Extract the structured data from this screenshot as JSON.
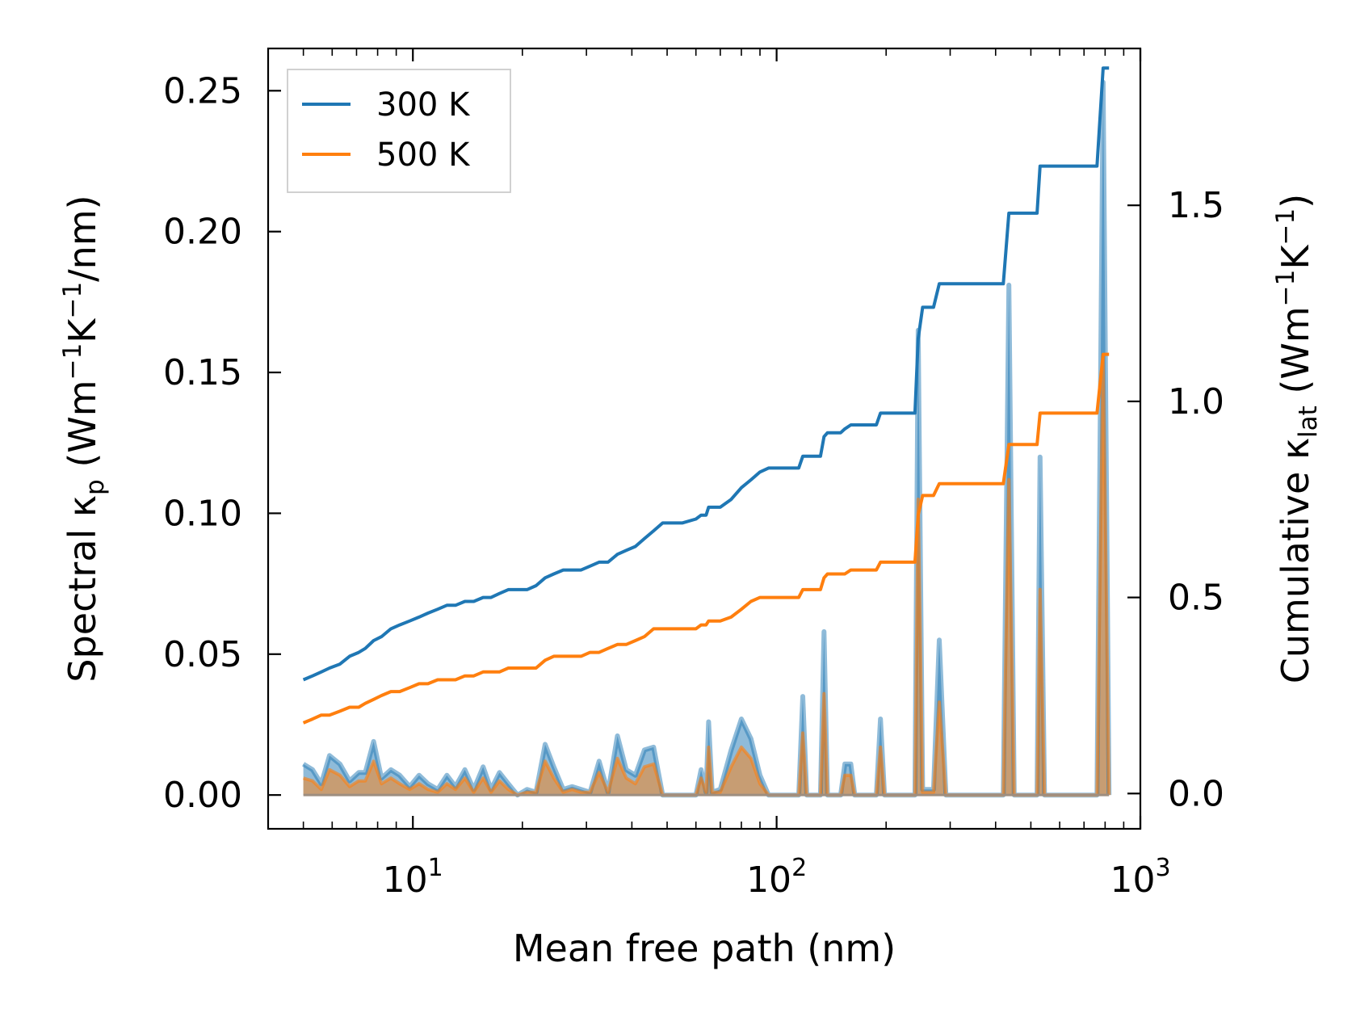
{
  "chart_data": {
    "type": "line",
    "title": "",
    "xlabel": "Mean free path (nm)",
    "ylabel": {
      "main": "Spectral κ",
      "sub": "p",
      "units_pre": " (Wm",
      "sup1": "−1",
      "units_mid": "K",
      "sup2": "−1",
      "units_post": "/nm)"
    },
    "ylabel_right": {
      "main": "Cumulative κ",
      "sub": "lat",
      "units_pre": " (Wm",
      "sup1": "−1",
      "units_mid": "K",
      "sup2": "−1",
      "units_post": ")"
    },
    "xscale": "log",
    "xlim": [
      4,
      1000
    ],
    "ylim": [
      -0.012,
      0.265
    ],
    "ylim_right": [
      -0.09,
      1.9
    ],
    "x_ticks": [
      {
        "base": "10",
        "exp": "1",
        "value": 10
      },
      {
        "base": "10",
        "exp": "2",
        "value": 100
      },
      {
        "base": "10",
        "exp": "3",
        "value": 1000
      }
    ],
    "y_ticks": [
      "0.00",
      "0.05",
      "0.10",
      "0.15",
      "0.20",
      "0.25"
    ],
    "y_ticks_right": [
      "0.0",
      "0.5",
      "1.0",
      "1.5"
    ],
    "legend": {
      "position": "top-left",
      "entries": [
        "300 K",
        "500 K"
      ]
    },
    "colors": {
      "s300": "#1f77b4",
      "s500": "#ff7f0e",
      "fill300": "#1f77b4",
      "fill500": "#ff7f0e"
    },
    "spectral": {
      "300 K": [
        [
          5,
          0.011
        ],
        [
          5.3,
          0.009
        ],
        [
          5.6,
          0.004
        ],
        [
          5.9,
          0.014
        ],
        [
          6.3,
          0.011
        ],
        [
          6.7,
          0.005
        ],
        [
          7.1,
          0.008
        ],
        [
          7.4,
          0.008
        ],
        [
          7.8,
          0.019
        ],
        [
          8.2,
          0.006
        ],
        [
          8.7,
          0.009
        ],
        [
          9.2,
          0.007
        ],
        [
          9.8,
          0.003
        ],
        [
          10.4,
          0.007
        ],
        [
          11,
          0.004
        ],
        [
          11.7,
          0.002
        ],
        [
          12.4,
          0.007
        ],
        [
          13.1,
          0.003
        ],
        [
          13.9,
          0.009
        ],
        [
          14.7,
          0.002
        ],
        [
          15.6,
          0.01
        ],
        [
          16.4,
          0.002
        ],
        [
          17.3,
          0.008
        ],
        [
          18.3,
          0.004
        ],
        [
          19.4,
          0.0
        ],
        [
          20.6,
          0.002
        ],
        [
          21.8,
          0.001
        ],
        [
          23.1,
          0.018
        ],
        [
          24.4,
          0.01
        ],
        [
          25.9,
          0.002
        ],
        [
          27.4,
          0.003
        ],
        [
          29,
          0.002
        ],
        [
          30.7,
          0.001
        ],
        [
          32.5,
          0.012
        ],
        [
          34.4,
          0.001
        ],
        [
          36.5,
          0.021
        ],
        [
          38.6,
          0.009
        ],
        [
          40.9,
          0.007
        ],
        [
          43.3,
          0.016
        ],
        [
          45.9,
          0.017
        ],
        [
          48.6,
          0.0
        ],
        [
          55,
          0.0
        ],
        [
          60,
          0.0
        ],
        [
          62,
          0.009
        ],
        [
          64,
          0.001
        ],
        [
          65,
          0.026
        ],
        [
          66.5,
          0.001
        ],
        [
          70,
          0.002
        ],
        [
          75,
          0.016
        ],
        [
          80,
          0.027
        ],
        [
          85,
          0.02
        ],
        [
          90,
          0.007
        ],
        [
          95,
          0.0
        ],
        [
          115,
          0.0
        ],
        [
          118,
          0.035
        ],
        [
          121,
          0.0
        ],
        [
          132,
          0.0
        ],
        [
          135,
          0.058
        ],
        [
          138,
          0.0
        ],
        [
          150,
          0.0
        ],
        [
          154,
          0.011
        ],
        [
          160,
          0.011
        ],
        [
          164,
          0.0
        ],
        [
          188,
          0.0
        ],
        [
          193,
          0.027
        ],
        [
          198,
          0.0
        ],
        [
          240,
          0.0
        ],
        [
          245,
          0.165
        ],
        [
          252,
          0.002
        ],
        [
          270,
          0.002
        ],
        [
          280,
          0.055
        ],
        [
          292,
          0.0
        ],
        [
          420,
          0.0
        ],
        [
          435,
          0.181
        ],
        [
          450,
          0.0
        ],
        [
          520,
          0.0
        ],
        [
          530,
          0.12
        ],
        [
          545,
          0.0
        ],
        [
          760,
          0.0
        ],
        [
          790,
          0.253
        ],
        [
          820,
          0.0
        ]
      ],
      "500 K": [
        [
          5,
          0.006
        ],
        [
          5.3,
          0.005
        ],
        [
          5.6,
          0.002
        ],
        [
          5.9,
          0.009
        ],
        [
          6.3,
          0.007
        ],
        [
          6.7,
          0.003
        ],
        [
          7.1,
          0.005
        ],
        [
          7.4,
          0.005
        ],
        [
          7.8,
          0.012
        ],
        [
          8.2,
          0.004
        ],
        [
          8.7,
          0.006
        ],
        [
          9.2,
          0.004
        ],
        [
          9.8,
          0.002
        ],
        [
          10.4,
          0.004
        ],
        [
          11,
          0.002
        ],
        [
          11.7,
          0.001
        ],
        [
          12.4,
          0.004
        ],
        [
          13.1,
          0.002
        ],
        [
          13.9,
          0.006
        ],
        [
          14.7,
          0.001
        ],
        [
          15.6,
          0.006
        ],
        [
          16.4,
          0.001
        ],
        [
          17.3,
          0.005
        ],
        [
          18.3,
          0.002
        ],
        [
          19.4,
          0.0
        ],
        [
          20.6,
          0.001
        ],
        [
          21.8,
          0.001
        ],
        [
          23.1,
          0.012
        ],
        [
          24.4,
          0.006
        ],
        [
          25.9,
          0.001
        ],
        [
          27.4,
          0.002
        ],
        [
          29,
          0.001
        ],
        [
          30.7,
          0.001
        ],
        [
          32.5,
          0.008
        ],
        [
          34.4,
          0.001
        ],
        [
          36.5,
          0.013
        ],
        [
          38.6,
          0.006
        ],
        [
          40.9,
          0.004
        ],
        [
          43.3,
          0.01
        ],
        [
          45.9,
          0.011
        ],
        [
          48.6,
          0.0
        ],
        [
          55,
          0.0
        ],
        [
          60,
          0.0
        ],
        [
          62,
          0.006
        ],
        [
          64,
          0.001
        ],
        [
          65,
          0.017
        ],
        [
          66.5,
          0.001
        ],
        [
          70,
          0.001
        ],
        [
          75,
          0.01
        ],
        [
          80,
          0.017
        ],
        [
          85,
          0.013
        ],
        [
          90,
          0.004
        ],
        [
          95,
          0.0
        ],
        [
          115,
          0.0
        ],
        [
          118,
          0.022
        ],
        [
          121,
          0.0
        ],
        [
          132,
          0.0
        ],
        [
          135,
          0.036
        ],
        [
          138,
          0.0
        ],
        [
          150,
          0.0
        ],
        [
          154,
          0.007
        ],
        [
          160,
          0.007
        ],
        [
          164,
          0.0
        ],
        [
          188,
          0.0
        ],
        [
          193,
          0.017
        ],
        [
          198,
          0.0
        ],
        [
          240,
          0.0
        ],
        [
          245,
          0.105
        ],
        [
          252,
          0.001
        ],
        [
          270,
          0.001
        ],
        [
          280,
          0.033
        ],
        [
          292,
          0.0
        ],
        [
          420,
          0.0
        ],
        [
          435,
          0.112
        ],
        [
          450,
          0.0
        ],
        [
          520,
          0.0
        ],
        [
          530,
          0.073
        ],
        [
          545,
          0.0
        ],
        [
          760,
          0.0
        ],
        [
          790,
          0.156
        ],
        [
          820,
          0.0
        ]
      ]
    },
    "cumulative": {
      "300 K": [
        [
          5,
          0.29
        ],
        [
          5.3,
          0.3
        ],
        [
          5.6,
          0.31
        ],
        [
          5.9,
          0.32
        ],
        [
          6.3,
          0.33
        ],
        [
          6.7,
          0.35
        ],
        [
          7.1,
          0.36
        ],
        [
          7.4,
          0.37
        ],
        [
          7.8,
          0.39
        ],
        [
          8.2,
          0.4
        ],
        [
          8.7,
          0.42
        ],
        [
          9.2,
          0.43
        ],
        [
          9.8,
          0.44
        ],
        [
          10.4,
          0.45
        ],
        [
          11,
          0.46
        ],
        [
          11.7,
          0.47
        ],
        [
          12.4,
          0.48
        ],
        [
          13.1,
          0.48
        ],
        [
          13.9,
          0.49
        ],
        [
          14.7,
          0.49
        ],
        [
          15.6,
          0.5
        ],
        [
          16.4,
          0.5
        ],
        [
          17.3,
          0.51
        ],
        [
          18.3,
          0.52
        ],
        [
          19.4,
          0.52
        ],
        [
          20.6,
          0.52
        ],
        [
          21.8,
          0.53
        ],
        [
          23.1,
          0.55
        ],
        [
          24.4,
          0.56
        ],
        [
          25.9,
          0.57
        ],
        [
          27.4,
          0.57
        ],
        [
          29,
          0.57
        ],
        [
          30.7,
          0.58
        ],
        [
          32.5,
          0.59
        ],
        [
          34.4,
          0.59
        ],
        [
          36.5,
          0.61
        ],
        [
          38.6,
          0.62
        ],
        [
          40.9,
          0.63
        ],
        [
          43.3,
          0.65
        ],
        [
          45.9,
          0.67
        ],
        [
          48.6,
          0.69
        ],
        [
          55,
          0.69
        ],
        [
          60,
          0.7
        ],
        [
          62,
          0.71
        ],
        [
          64,
          0.71
        ],
        [
          65,
          0.73
        ],
        [
          66.5,
          0.73
        ],
        [
          70,
          0.73
        ],
        [
          75,
          0.75
        ],
        [
          80,
          0.78
        ],
        [
          85,
          0.8
        ],
        [
          90,
          0.82
        ],
        [
          95,
          0.83
        ],
        [
          115,
          0.83
        ],
        [
          118,
          0.86
        ],
        [
          121,
          0.86
        ],
        [
          132,
          0.86
        ],
        [
          135,
          0.91
        ],
        [
          138,
          0.92
        ],
        [
          150,
          0.92
        ],
        [
          154,
          0.93
        ],
        [
          160,
          0.94
        ],
        [
          164,
          0.94
        ],
        [
          188,
          0.94
        ],
        [
          193,
          0.97
        ],
        [
          198,
          0.97
        ],
        [
          240,
          0.97
        ],
        [
          245,
          1.16
        ],
        [
          252,
          1.24
        ],
        [
          270,
          1.24
        ],
        [
          280,
          1.3
        ],
        [
          292,
          1.3
        ],
        [
          420,
          1.3
        ],
        [
          435,
          1.48
        ],
        [
          450,
          1.48
        ],
        [
          520,
          1.48
        ],
        [
          530,
          1.6
        ],
        [
          545,
          1.6
        ],
        [
          760,
          1.6
        ],
        [
          790,
          1.85
        ],
        [
          820,
          1.85
        ]
      ],
      "500 K": [
        [
          5,
          0.18
        ],
        [
          5.3,
          0.19
        ],
        [
          5.6,
          0.2
        ],
        [
          5.9,
          0.2
        ],
        [
          6.3,
          0.21
        ],
        [
          6.7,
          0.22
        ],
        [
          7.1,
          0.22
        ],
        [
          7.4,
          0.23
        ],
        [
          7.8,
          0.24
        ],
        [
          8.2,
          0.25
        ],
        [
          8.7,
          0.26
        ],
        [
          9.2,
          0.26
        ],
        [
          9.8,
          0.27
        ],
        [
          10.4,
          0.28
        ],
        [
          11,
          0.28
        ],
        [
          11.7,
          0.29
        ],
        [
          12.4,
          0.29
        ],
        [
          13.1,
          0.29
        ],
        [
          13.9,
          0.3
        ],
        [
          14.7,
          0.3
        ],
        [
          15.6,
          0.31
        ],
        [
          16.4,
          0.31
        ],
        [
          17.3,
          0.31
        ],
        [
          18.3,
          0.32
        ],
        [
          19.4,
          0.32
        ],
        [
          20.6,
          0.32
        ],
        [
          21.8,
          0.32
        ],
        [
          23.1,
          0.34
        ],
        [
          24.4,
          0.35
        ],
        [
          25.9,
          0.35
        ],
        [
          27.4,
          0.35
        ],
        [
          29,
          0.35
        ],
        [
          30.7,
          0.36
        ],
        [
          32.5,
          0.36
        ],
        [
          34.4,
          0.37
        ],
        [
          36.5,
          0.38
        ],
        [
          38.6,
          0.38
        ],
        [
          40.9,
          0.39
        ],
        [
          43.3,
          0.4
        ],
        [
          45.9,
          0.42
        ],
        [
          48.6,
          0.42
        ],
        [
          55,
          0.42
        ],
        [
          60,
          0.42
        ],
        [
          62,
          0.43
        ],
        [
          64,
          0.43
        ],
        [
          65,
          0.44
        ],
        [
          66.5,
          0.44
        ],
        [
          70,
          0.44
        ],
        [
          75,
          0.45
        ],
        [
          80,
          0.47
        ],
        [
          85,
          0.49
        ],
        [
          90,
          0.5
        ],
        [
          95,
          0.5
        ],
        [
          115,
          0.5
        ],
        [
          118,
          0.52
        ],
        [
          121,
          0.52
        ],
        [
          132,
          0.52
        ],
        [
          135,
          0.55
        ],
        [
          138,
          0.56
        ],
        [
          150,
          0.56
        ],
        [
          154,
          0.56
        ],
        [
          160,
          0.57
        ],
        [
          164,
          0.57
        ],
        [
          188,
          0.57
        ],
        [
          193,
          0.59
        ],
        [
          198,
          0.59
        ],
        [
          240,
          0.59
        ],
        [
          245,
          0.71
        ],
        [
          252,
          0.76
        ],
        [
          270,
          0.76
        ],
        [
          280,
          0.79
        ],
        [
          292,
          0.79
        ],
        [
          420,
          0.79
        ],
        [
          435,
          0.89
        ],
        [
          450,
          0.89
        ],
        [
          520,
          0.89
        ],
        [
          530,
          0.97
        ],
        [
          545,
          0.97
        ],
        [
          760,
          0.97
        ],
        [
          790,
          1.12
        ],
        [
          820,
          1.12
        ]
      ]
    }
  }
}
